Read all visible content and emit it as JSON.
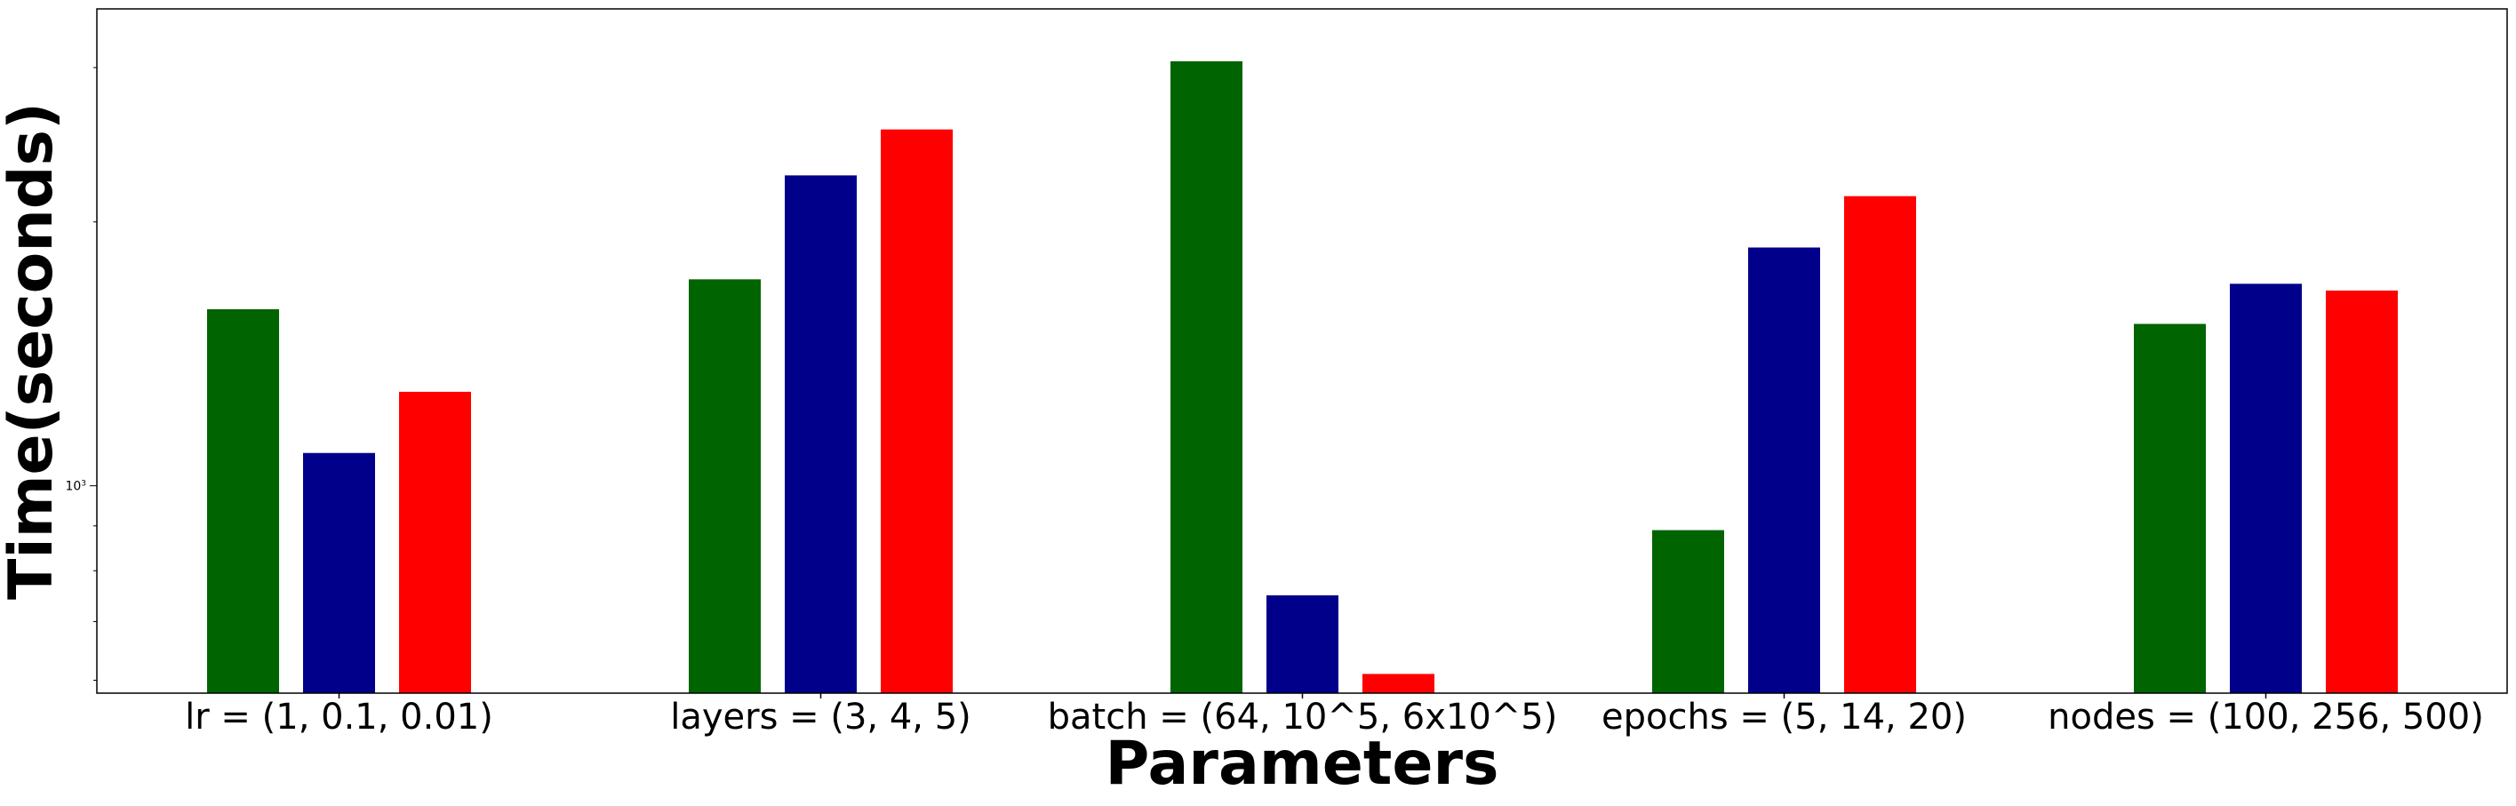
{
  "chart_data": {
    "type": "bar",
    "title": "",
    "xlabel": "Parameters",
    "ylabel": "Time(seconds)",
    "yscale": "log",
    "ylim": [
      580,
      3500
    ],
    "ytick_labels": [
      {
        "value": 1000,
        "base": "10",
        "exp": "3"
      }
    ],
    "categories": [
      "lr = (1, 0.1, 0.01)",
      "layers = (3, 4, 5)",
      "batch = (64, 10^5, 6x10^5)",
      "epochs = (5, 14, 20)",
      "nodes = (100, 256, 500)"
    ],
    "series": [
      {
        "color": "#006400",
        "values": [
          1590,
          1720,
          3050,
          890,
          1530
        ]
      },
      {
        "color": "#00008B",
        "values": [
          1090,
          2260,
          750,
          1870,
          1700
        ]
      },
      {
        "color": "#FF0000",
        "values": [
          1280,
          2550,
          610,
          2140,
          1670
        ]
      }
    ],
    "grid": false,
    "legend": "none"
  }
}
